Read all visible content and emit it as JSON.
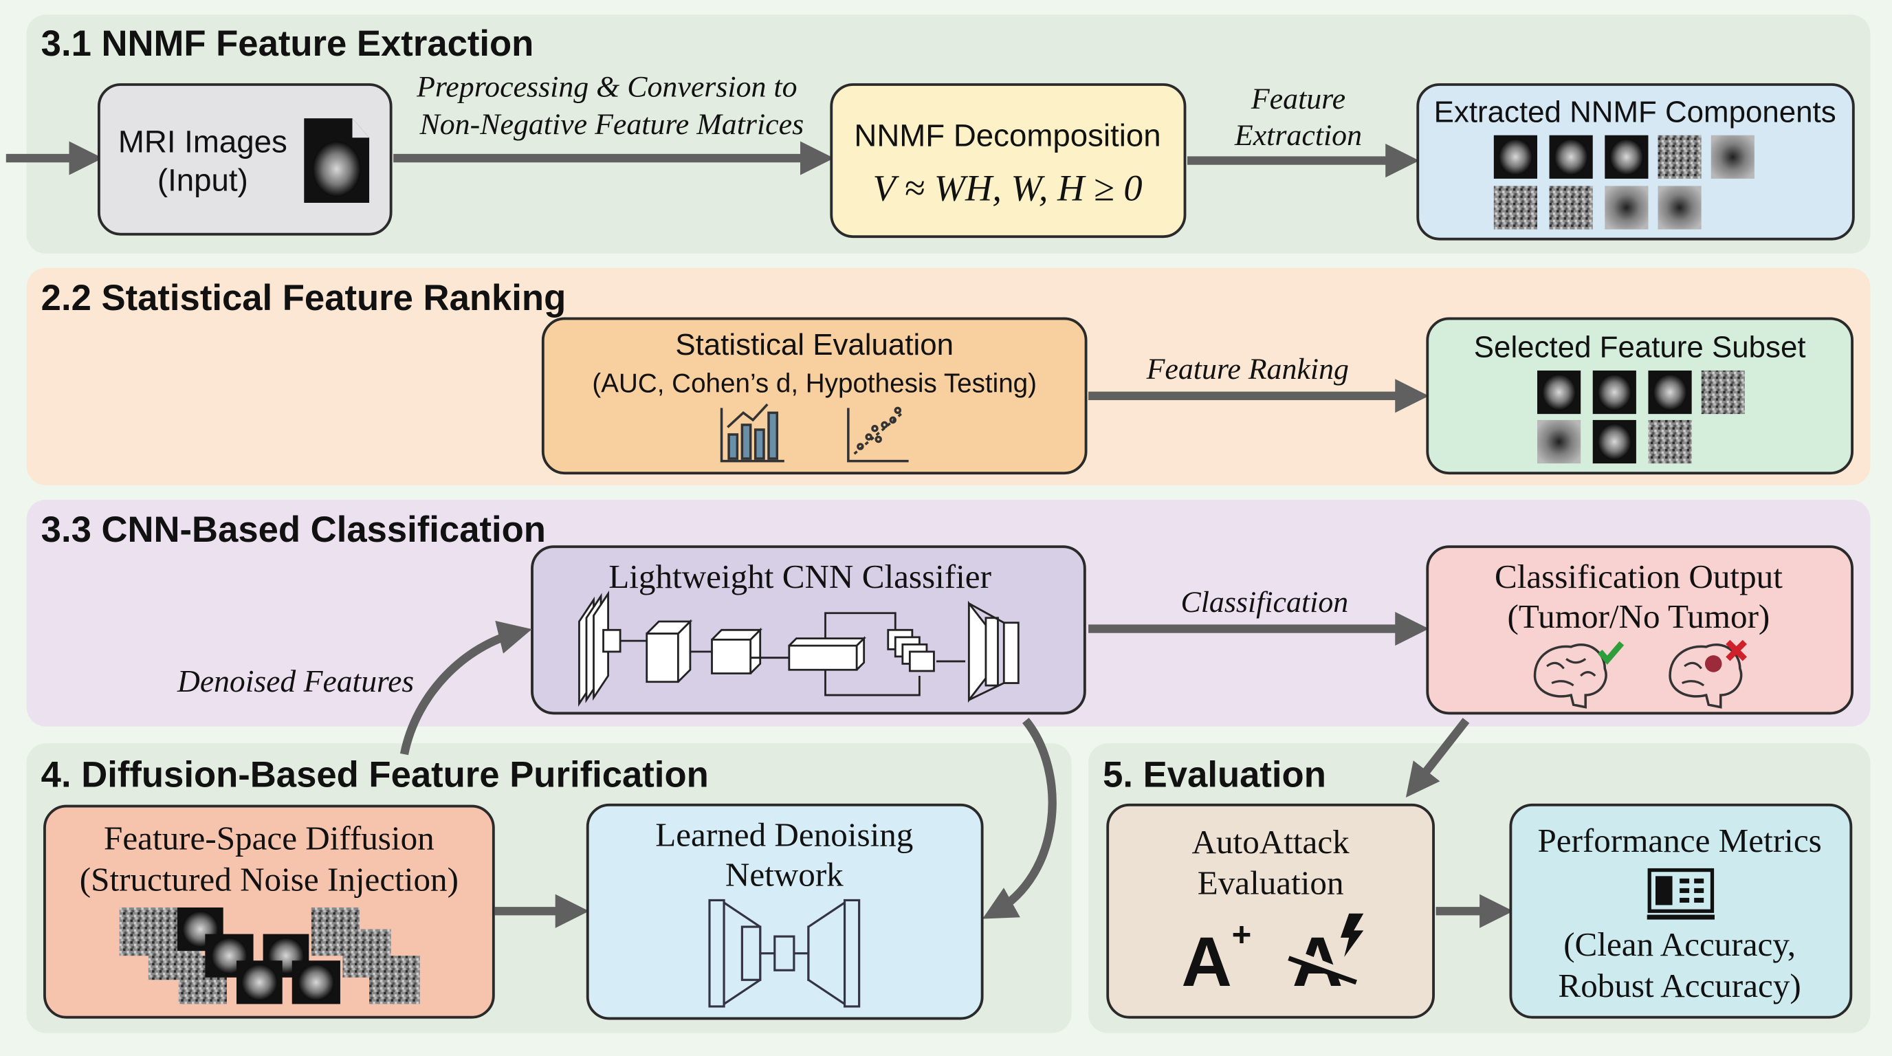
{
  "colors": {
    "page_bg": "#eef6ee",
    "section_green": "#e3ece0",
    "section_orange": "#fbe7d3",
    "section_purple": "#ece2ef",
    "arrow": "#606060",
    "check": "#2e9e3a",
    "cross": "#d0202a"
  },
  "sections": {
    "nnmf": {
      "title": "3.1 NNMF Feature Extraction",
      "input_box": {
        "line1": "MRI Images",
        "line2": "(Input)",
        "icon": "mri-file-icon"
      },
      "arrow1_label": {
        "line1": "Preprocessing & Conversion to",
        "line2": "Non-Negative Feature Matrices"
      },
      "decomp_box": {
        "line1": "NNMF Decomposition",
        "formula": "V ≈ WH, W, H ≥ 0"
      },
      "arrow2_label": {
        "line1": "Feature",
        "line2": "Extraction"
      },
      "components_box": {
        "title": "Extracted NNMF Components"
      }
    },
    "ranking": {
      "title": "2.2 Statistical Feature Ranking",
      "eval_box": {
        "line1": "Statistical Evaluation",
        "line2": "(AUC, Cohen’s d, Hypothesis Testing)",
        "icons": [
          "bar-chart-icon",
          "scatter-plot-icon"
        ]
      },
      "arrow_label": "Feature Ranking",
      "subset_box": {
        "title": "Selected Feature Subset"
      }
    },
    "cnn": {
      "title": "3.3 CNN-Based Classification",
      "classifier_box": {
        "title": "Lightweight CNN Classifier"
      },
      "arrow_label": "Classification",
      "output_box": {
        "line1": "Classification Output",
        "line2": "(Tumor/No Tumor)",
        "icons": [
          "healthy-brain-check-icon",
          "tumor-brain-cross-icon"
        ]
      },
      "denoised_label": "Denoised Features"
    },
    "diffusion": {
      "title": "4. Diffusion-Based Feature Purification",
      "diffusion_box": {
        "line1": "Feature-Space Diffusion",
        "line2": "(Structured Noise Injection)"
      },
      "denoise_box": {
        "line1": "Learned Denoising",
        "line2": "Network"
      }
    },
    "evaluation": {
      "title": "5. Evaluation",
      "autoattack_box": {
        "line1": "AutoAttack",
        "line2": "Evaluation",
        "glyph1": "A",
        "glyph1_sup": "+",
        "glyph2": "A"
      },
      "metrics_box": {
        "line1": "Performance Metrics",
        "line2": "(Clean Accuracy,",
        "line3": "Robust Accuracy)",
        "icon": "metrics-dashboard-icon"
      }
    }
  }
}
